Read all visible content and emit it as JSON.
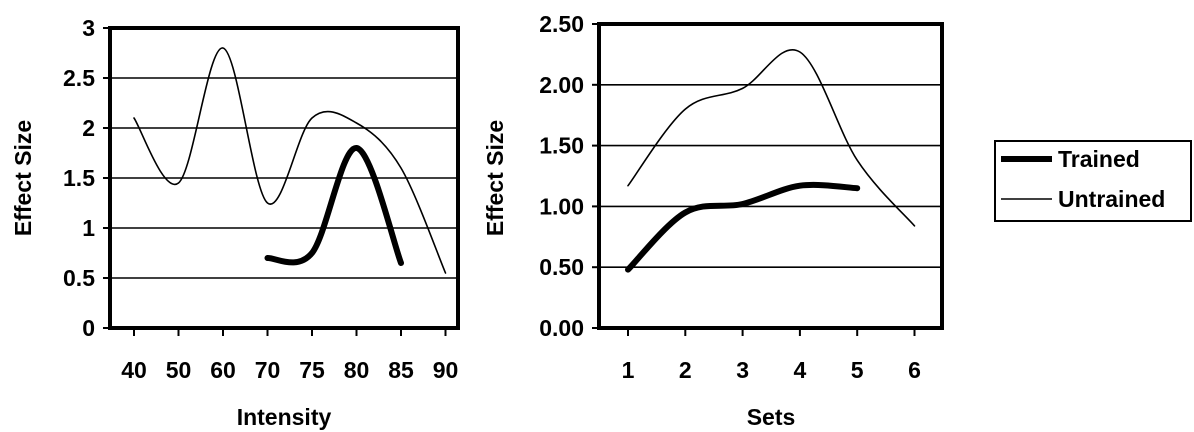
{
  "chart_data": [
    {
      "type": "line",
      "xlabel": "Intensity",
      "ylabel": "Effect Size",
      "categories": [
        "40",
        "50",
        "60",
        "70",
        "75",
        "80",
        "85",
        "90"
      ],
      "ylim": [
        0,
        3
      ],
      "yticks": [
        "0",
        "0.5",
        "1",
        "1.5",
        "2",
        "2.5",
        "3"
      ],
      "grid": true,
      "series": [
        {
          "name": "Trained",
          "x": [
            70,
            75,
            80,
            85
          ],
          "values": [
            0.7,
            0.75,
            1.8,
            0.65
          ]
        },
        {
          "name": "Untrained",
          "x": [
            40,
            50,
            60,
            70,
            75,
            80,
            85,
            90
          ],
          "values": [
            2.1,
            1.45,
            2.8,
            1.25,
            2.1,
            2.05,
            1.6,
            0.55
          ]
        }
      ]
    },
    {
      "type": "line",
      "xlabel": "Sets",
      "ylabel": "Effect Size",
      "categories": [
        "1",
        "2",
        "3",
        "4",
        "5",
        "6"
      ],
      "ylim": [
        0,
        2.5
      ],
      "yticks": [
        "0.00",
        "0.50",
        "1.00",
        "1.50",
        "2.00",
        "2.50"
      ],
      "grid": true,
      "series": [
        {
          "name": "Trained",
          "x": [
            1,
            2,
            3,
            4,
            5
          ],
          "values": [
            0.48,
            0.95,
            1.02,
            1.17,
            1.15
          ]
        },
        {
          "name": "Untrained",
          "x": [
            1,
            2,
            3,
            4,
            5,
            6
          ],
          "values": [
            1.17,
            1.8,
            1.97,
            2.27,
            1.38,
            0.84
          ]
        }
      ]
    }
  ],
  "legend": {
    "position": "right",
    "items": [
      {
        "label": "Trained",
        "style": "thick"
      },
      {
        "label": "Untrained",
        "style": "thin"
      }
    ]
  },
  "colors": {
    "line": "#000000",
    "grid": "#000000",
    "background": "#ffffff"
  }
}
